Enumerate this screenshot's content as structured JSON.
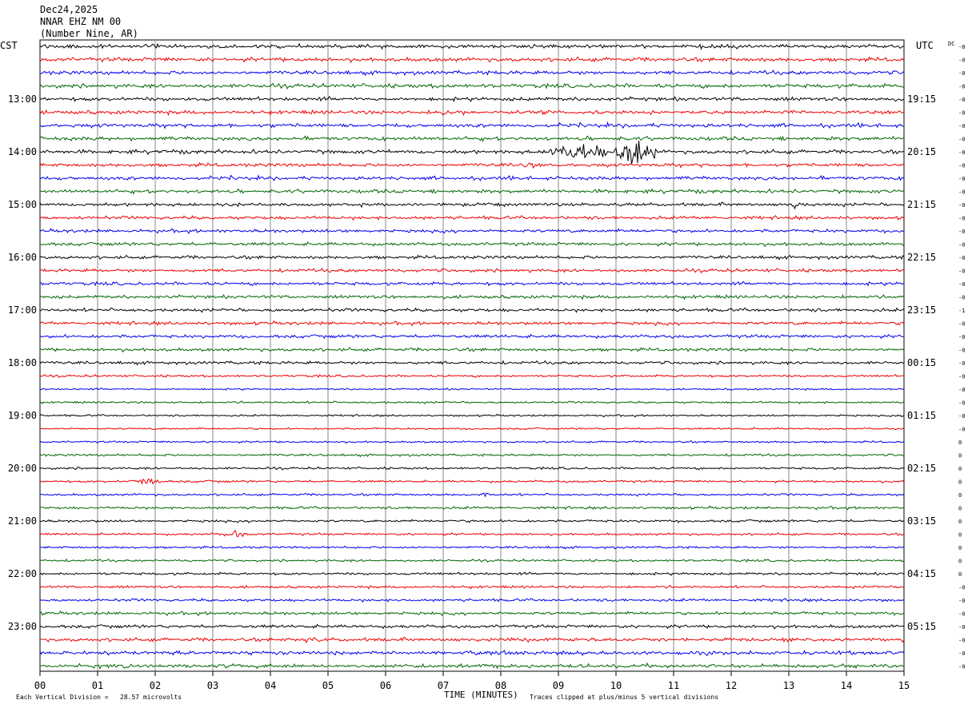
{
  "header": {
    "date": "Dec24,2025",
    "station": "NNAR EHZ NM 00",
    "location": "(Number Nine, AR)"
  },
  "left_axis_label": "CST",
  "right_axis_label": "UTC",
  "dc_label": "DC",
  "footer": {
    "scale_note": "Each Vertical Division =   28.57 microvolts",
    "xlabel": "TIME (MINUTES)",
    "clip_note": "Traces clipped at plus/minus 5 vertical divisions"
  },
  "colors": {
    "trace_cycle": [
      "#000000",
      "#ee0000",
      "#0000ee",
      "#006600"
    ],
    "grid": "#888888"
  },
  "chart_data": {
    "type": "line",
    "title": "",
    "xlabel": "TIME (MINUTES)",
    "ylabel": "",
    "xlim": [
      0,
      15
    ],
    "x_ticks": [
      "00",
      "01",
      "02",
      "03",
      "04",
      "05",
      "06",
      "07",
      "08",
      "09",
      "10",
      "11",
      "12",
      "13",
      "14",
      "15"
    ],
    "row_count": 48,
    "minutes_per_row": 15,
    "left_time_labels": [
      "13:00",
      "14:00",
      "15:00",
      "16:00",
      "17:00",
      "18:00",
      "19:00",
      "20:00",
      "21:00",
      "22:00",
      "23:00"
    ],
    "right_time_labels": [
      "19:15",
      "20:15",
      "21:15",
      "22:15",
      "23:15",
      "00:15",
      "01:15",
      "02:15",
      "03:15",
      "04:15",
      "05:15"
    ],
    "hour_label_rows": [
      4,
      8,
      12,
      16,
      20,
      24,
      28,
      32,
      36,
      40,
      44
    ],
    "dc_offsets": [
      "-0",
      "-0",
      "-0",
      "-0",
      "-0",
      "-0",
      "-0",
      "-0",
      "-0",
      "-0",
      "-0",
      "-0",
      "-0",
      "-0",
      "-0",
      "-0",
      "-0",
      "-0",
      "-0",
      "-0",
      "-1",
      "-0",
      "-0",
      "-0",
      "-0",
      "-0",
      "-0",
      "-0",
      "-0",
      "-0",
      "0",
      "0",
      "0",
      "0",
      "0",
      "0",
      "0",
      "0",
      "0",
      "0",
      "0",
      "-0",
      "-0",
      "-0",
      "-0",
      "-0",
      "-0",
      "-0"
    ],
    "row_noise": [
      3.0,
      3.2,
      3.0,
      3.2,
      3.0,
      3.0,
      3.0,
      3.0,
      3.0,
      2.8,
      2.8,
      2.8,
      2.6,
      2.6,
      2.6,
      2.6,
      2.6,
      2.6,
      2.6,
      2.6,
      2.6,
      2.6,
      2.6,
      2.6,
      2.4,
      1.8,
      1.4,
      1.6,
      1.5,
      1.5,
      1.5,
      1.8,
      1.8,
      1.8,
      1.8,
      2.0,
      2.0,
      1.8,
      1.8,
      1.8,
      2.0,
      2.0,
      2.2,
      2.4,
      2.6,
      2.8,
      3.0,
      3.0
    ],
    "events": [
      {
        "row": 8,
        "start_min": 8.85,
        "end_min": 9.9,
        "amplitude": 9
      },
      {
        "row": 8,
        "start_min": 10.0,
        "end_min": 10.7,
        "amplitude": 16
      },
      {
        "row": 5,
        "start_min": 6.95,
        "end_min": 7.1,
        "amplitude": 7
      },
      {
        "row": 12,
        "start_min": 13.05,
        "end_min": 13.2,
        "amplitude": 6
      },
      {
        "row": 33,
        "start_min": 1.55,
        "end_min": 2.1,
        "amplitude": 3
      },
      {
        "row": 34,
        "start_min": 7.6,
        "end_min": 7.8,
        "amplitude": 3
      },
      {
        "row": 37,
        "start_min": 3.1,
        "end_min": 3.6,
        "amplitude": 2.5
      },
      {
        "row": 45,
        "start_min": 4.6,
        "end_min": 4.9,
        "amplitude": 5
      },
      {
        "row": 9,
        "start_min": 8.4,
        "end_min": 8.6,
        "amplitude": 5
      }
    ]
  }
}
